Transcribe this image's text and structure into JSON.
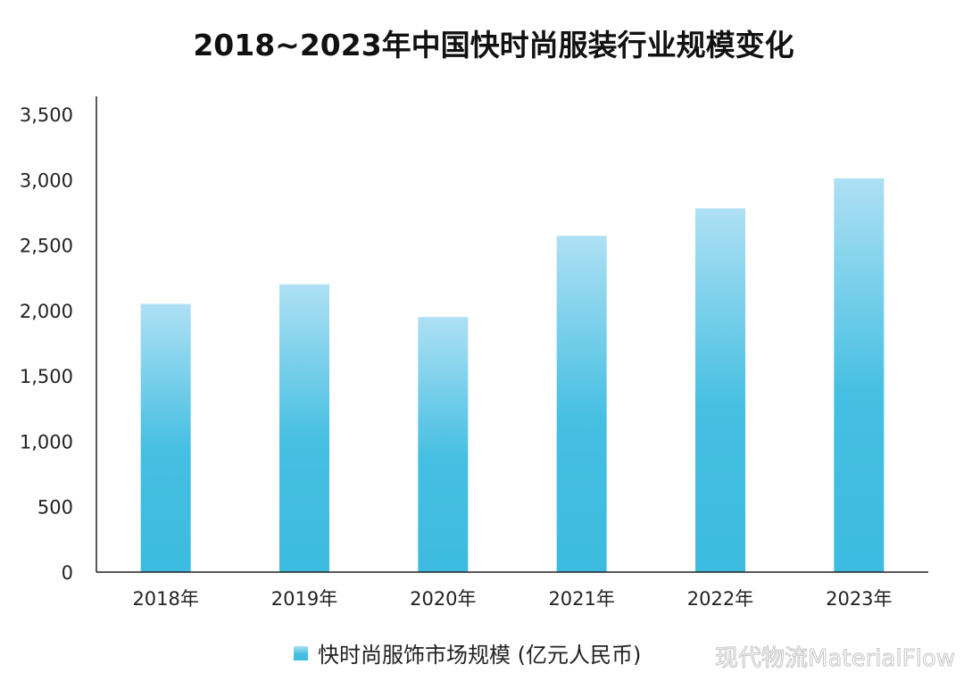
{
  "chart_data": {
    "type": "bar",
    "title": "2018~2023年中国快时尚服装行业规模变化",
    "categories": [
      "2018年",
      "2019年",
      "2020年",
      "2021年",
      "2022年",
      "2023年"
    ],
    "series": [
      {
        "name": "快时尚服饰市场规模 (亿元人民币)",
        "values": [
          2050,
          2200,
          1950,
          2570,
          2780,
          3010
        ]
      }
    ],
    "ylim": [
      0,
      3500
    ],
    "yticks": [
      0,
      500,
      1000,
      1500,
      2000,
      2500,
      3000,
      3500
    ],
    "ytick_labels": [
      "0",
      "500",
      "1,000",
      "1,500",
      "2,000",
      "2,500",
      "3,000",
      "3,500"
    ],
    "xlabel": "",
    "ylabel": "",
    "grid": false,
    "legend_position": "bottom",
    "colors": {
      "bar_top": "#aee0f4",
      "bar_bottom": "#3dbbe0",
      "axis": "#222222"
    }
  },
  "watermark": "现代物流MaterialFlow"
}
